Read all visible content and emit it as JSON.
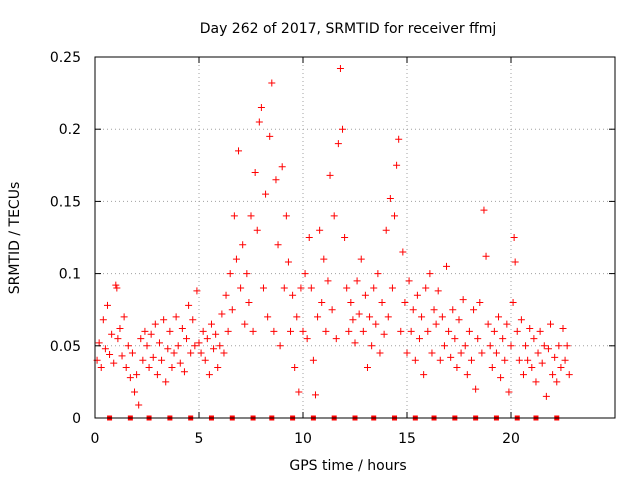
{
  "chart_data": {
    "type": "scatter",
    "title": "Day 262 of 2017, SRMTID for receiver ffmj",
    "xlabel": "GPS time / hours",
    "ylabel": "SRMTID / TECUs",
    "xlim": [
      0,
      25
    ],
    "ylim": [
      0,
      0.25
    ],
    "x_ticks": [
      0,
      5,
      10,
      15,
      20
    ],
    "x_tick_labels": [
      "0",
      "5",
      "10",
      "15",
      "20"
    ],
    "y_ticks": [
      0,
      0.05,
      0.1,
      0.15,
      0.2,
      0.25
    ],
    "y_tick_labels": [
      "0",
      "0.05",
      "0.1",
      "0.15",
      "0.2",
      "0.25"
    ],
    "grid": true,
    "marker": "+",
    "color": "#ff0000",
    "series": [
      {
        "name": "SRMTID",
        "points": [
          [
            0.1,
            0.04
          ],
          [
            0.2,
            0.052
          ],
          [
            0.3,
            0.035
          ],
          [
            0.4,
            0.068
          ],
          [
            0.5,
            0.048
          ],
          [
            0.6,
            0.078
          ],
          [
            0.7,
            0.044
          ],
          [
            0.8,
            0.058
          ],
          [
            0.9,
            0.038
          ],
          [
            1.0,
            0.092
          ],
          [
            1.05,
            0.09
          ],
          [
            1.1,
            0.055
          ],
          [
            1.2,
            0.062
          ],
          [
            1.3,
            0.043
          ],
          [
            1.4,
            0.07
          ],
          [
            1.5,
            0.035
          ],
          [
            1.6,
            0.05
          ],
          [
            1.7,
            0.028
          ],
          [
            1.8,
            0.045
          ],
          [
            1.9,
            0.018
          ],
          [
            2.0,
            0.03
          ],
          [
            2.1,
            0.009
          ],
          [
            2.2,
            0.055
          ],
          [
            2.3,
            0.04
          ],
          [
            2.4,
            0.06
          ],
          [
            2.5,
            0.05
          ],
          [
            2.6,
            0.035
          ],
          [
            2.7,
            0.058
          ],
          [
            2.8,
            0.042
          ],
          [
            2.9,
            0.065
          ],
          [
            3.0,
            0.03
          ],
          [
            3.1,
            0.052
          ],
          [
            3.2,
            0.04
          ],
          [
            3.3,
            0.068
          ],
          [
            3.4,
            0.025
          ],
          [
            3.5,
            0.048
          ],
          [
            3.6,
            0.06
          ],
          [
            3.7,
            0.035
          ],
          [
            3.8,
            0.045
          ],
          [
            3.9,
            0.07
          ],
          [
            4.0,
            0.05
          ],
          [
            4.1,
            0.038
          ],
          [
            4.2,
            0.062
          ],
          [
            4.3,
            0.032
          ],
          [
            4.4,
            0.055
          ],
          [
            4.5,
            0.078
          ],
          [
            4.6,
            0.045
          ],
          [
            4.7,
            0.068
          ],
          [
            4.8,
            0.05
          ],
          [
            4.9,
            0.088
          ],
          [
            5.0,
            0.052
          ],
          [
            5.1,
            0.045
          ],
          [
            5.2,
            0.06
          ],
          [
            5.3,
            0.04
          ],
          [
            5.4,
            0.055
          ],
          [
            5.5,
            0.03
          ],
          [
            5.6,
            0.065
          ],
          [
            5.7,
            0.048
          ],
          [
            5.8,
            0.058
          ],
          [
            5.9,
            0.035
          ],
          [
            6.0,
            0.05
          ],
          [
            6.1,
            0.072
          ],
          [
            6.2,
            0.045
          ],
          [
            6.3,
            0.085
          ],
          [
            6.4,
            0.06
          ],
          [
            6.5,
            0.1
          ],
          [
            6.6,
            0.075
          ],
          [
            6.7,
            0.14
          ],
          [
            6.8,
            0.11
          ],
          [
            6.9,
            0.185
          ],
          [
            7.0,
            0.09
          ],
          [
            7.1,
            0.12
          ],
          [
            7.2,
            0.065
          ],
          [
            7.3,
            0.1
          ],
          [
            7.4,
            0.08
          ],
          [
            7.5,
            0.14
          ],
          [
            7.6,
            0.06
          ],
          [
            7.7,
            0.17
          ],
          [
            7.8,
            0.13
          ],
          [
            7.9,
            0.205
          ],
          [
            8.0,
            0.215
          ],
          [
            8.1,
            0.09
          ],
          [
            8.2,
            0.155
          ],
          [
            8.3,
            0.07
          ],
          [
            8.4,
            0.195
          ],
          [
            8.5,
            0.232
          ],
          [
            8.6,
            0.06
          ],
          [
            8.7,
            0.165
          ],
          [
            8.8,
            0.12
          ],
          [
            8.9,
            0.05
          ],
          [
            9.0,
            0.174
          ],
          [
            9.1,
            0.09
          ],
          [
            9.2,
            0.14
          ],
          [
            9.3,
            0.108
          ],
          [
            9.4,
            0.06
          ],
          [
            9.5,
            0.085
          ],
          [
            9.6,
            0.035
          ],
          [
            9.7,
            0.07
          ],
          [
            9.8,
            0.018
          ],
          [
            9.9,
            0.09
          ],
          [
            10.0,
            0.06
          ],
          [
            10.1,
            0.1
          ],
          [
            10.2,
            0.055
          ],
          [
            10.3,
            0.125
          ],
          [
            10.4,
            0.09
          ],
          [
            10.5,
            0.04
          ],
          [
            10.6,
            0.016
          ],
          [
            10.7,
            0.07
          ],
          [
            10.8,
            0.13
          ],
          [
            10.9,
            0.08
          ],
          [
            11.0,
            0.11
          ],
          [
            11.1,
            0.06
          ],
          [
            11.2,
            0.095
          ],
          [
            11.3,
            0.168
          ],
          [
            11.4,
            0.075
          ],
          [
            11.5,
            0.14
          ],
          [
            11.6,
            0.055
          ],
          [
            11.7,
            0.19
          ],
          [
            11.8,
            0.242
          ],
          [
            11.9,
            0.2
          ],
          [
            12.0,
            0.125
          ],
          [
            12.1,
            0.09
          ],
          [
            12.2,
            0.06
          ],
          [
            12.3,
            0.08
          ],
          [
            12.4,
            0.068
          ],
          [
            12.5,
            0.052
          ],
          [
            12.6,
            0.095
          ],
          [
            12.7,
            0.072
          ],
          [
            12.8,
            0.11
          ],
          [
            12.9,
            0.06
          ],
          [
            13.0,
            0.085
          ],
          [
            13.1,
            0.035
          ],
          [
            13.2,
            0.07
          ],
          [
            13.3,
            0.05
          ],
          [
            13.4,
            0.09
          ],
          [
            13.5,
            0.065
          ],
          [
            13.6,
            0.1
          ],
          [
            13.7,
            0.045
          ],
          [
            13.8,
            0.08
          ],
          [
            13.9,
            0.058
          ],
          [
            14.0,
            0.13
          ],
          [
            14.1,
            0.07
          ],
          [
            14.2,
            0.152
          ],
          [
            14.3,
            0.09
          ],
          [
            14.4,
            0.14
          ],
          [
            14.5,
            0.175
          ],
          [
            14.6,
            0.193
          ],
          [
            14.7,
            0.06
          ],
          [
            14.8,
            0.115
          ],
          [
            14.9,
            0.08
          ],
          [
            15.0,
            0.045
          ],
          [
            15.1,
            0.095
          ],
          [
            15.2,
            0.06
          ],
          [
            15.3,
            0.075
          ],
          [
            15.4,
            0.04
          ],
          [
            15.5,
            0.085
          ],
          [
            15.6,
            0.055
          ],
          [
            15.7,
            0.07
          ],
          [
            15.8,
            0.03
          ],
          [
            15.9,
            0.09
          ],
          [
            16.0,
            0.06
          ],
          [
            16.1,
            0.1
          ],
          [
            16.2,
            0.045
          ],
          [
            16.3,
            0.075
          ],
          [
            16.4,
            0.065
          ],
          [
            16.5,
            0.088
          ],
          [
            16.6,
            0.04
          ],
          [
            16.7,
            0.07
          ],
          [
            16.8,
            0.05
          ],
          [
            16.9,
            0.105
          ],
          [
            17.0,
            0.06
          ],
          [
            17.1,
            0.042
          ],
          [
            17.2,
            0.075
          ],
          [
            17.3,
            0.055
          ],
          [
            17.4,
            0.035
          ],
          [
            17.5,
            0.068
          ],
          [
            17.6,
            0.045
          ],
          [
            17.7,
            0.082
          ],
          [
            17.8,
            0.05
          ],
          [
            17.9,
            0.03
          ],
          [
            18.0,
            0.06
          ],
          [
            18.1,
            0.04
          ],
          [
            18.2,
            0.075
          ],
          [
            18.3,
            0.02
          ],
          [
            18.4,
            0.055
          ],
          [
            18.5,
            0.08
          ],
          [
            18.6,
            0.045
          ],
          [
            18.7,
            0.144
          ],
          [
            18.8,
            0.112
          ],
          [
            18.9,
            0.065
          ],
          [
            19.0,
            0.05
          ],
          [
            19.1,
            0.035
          ],
          [
            19.2,
            0.06
          ],
          [
            19.3,
            0.045
          ],
          [
            19.4,
            0.07
          ],
          [
            19.5,
            0.028
          ],
          [
            19.6,
            0.055
          ],
          [
            19.7,
            0.04
          ],
          [
            19.8,
            0.065
          ],
          [
            19.9,
            0.018
          ],
          [
            20.0,
            0.05
          ],
          [
            20.1,
            0.08
          ],
          [
            20.15,
            0.125
          ],
          [
            20.2,
            0.108
          ],
          [
            20.3,
            0.06
          ],
          [
            20.4,
            0.04
          ],
          [
            20.5,
            0.068
          ],
          [
            20.6,
            0.03
          ],
          [
            20.7,
            0.05
          ],
          [
            20.8,
            0.04
          ],
          [
            20.9,
            0.062
          ],
          [
            21.0,
            0.035
          ],
          [
            21.1,
            0.055
          ],
          [
            21.2,
            0.025
          ],
          [
            21.3,
            0.045
          ],
          [
            21.4,
            0.06
          ],
          [
            21.5,
            0.038
          ],
          [
            21.6,
            0.05
          ],
          [
            21.7,
            0.015
          ],
          [
            21.8,
            0.048
          ],
          [
            21.9,
            0.065
          ],
          [
            22.0,
            0.03
          ],
          [
            22.1,
            0.042
          ],
          [
            22.2,
            0.025
          ],
          [
            22.3,
            0.05
          ],
          [
            22.4,
            0.035
          ],
          [
            22.5,
            0.062
          ],
          [
            22.6,
            0.04
          ],
          [
            22.7,
            0.05
          ],
          [
            22.8,
            0.03
          ]
        ]
      },
      {
        "name": "zero markers",
        "marker": "square",
        "x": [
          0.7,
          1.7,
          2.6,
          3.6,
          4.6,
          5.6,
          6.6,
          7.6,
          8.5,
          9.5,
          10.5,
          11.5,
          12.5,
          13.4,
          14.4,
          15.4,
          16.3,
          17.3,
          18.3,
          19.3,
          20.3,
          21.2,
          22.2
        ],
        "y": 0
      }
    ]
  }
}
